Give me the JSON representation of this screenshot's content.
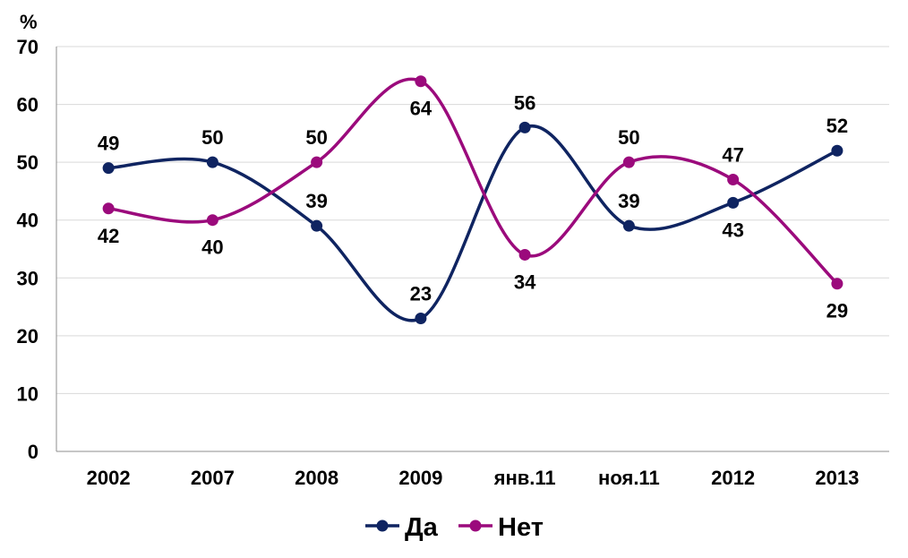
{
  "chart_data": {
    "type": "line",
    "smooth": true,
    "unit_label": "%",
    "categories": [
      "2002",
      "2007",
      "2008",
      "2009",
      "янв.11",
      "ноя.11",
      "2012",
      "2013"
    ],
    "ylim": [
      0,
      70
    ],
    "yticks": [
      0,
      10,
      20,
      30,
      40,
      50,
      60,
      70
    ],
    "grid": true,
    "legend": "bottom",
    "series": [
      {
        "name": "Да",
        "color": "#0F2461",
        "values": [
          49,
          50,
          39,
          23,
          56,
          39,
          43,
          52
        ],
        "label_pos": [
          "above",
          "above",
          "above",
          "above",
          "above",
          "above",
          "below",
          "above"
        ]
      },
      {
        "name": "Нет",
        "color": "#9B0A7C",
        "values": [
          42,
          40,
          50,
          64,
          34,
          50,
          47,
          29
        ],
        "label_pos": [
          "below",
          "below",
          "above",
          "below",
          "below",
          "above",
          "above",
          "below"
        ]
      }
    ]
  }
}
